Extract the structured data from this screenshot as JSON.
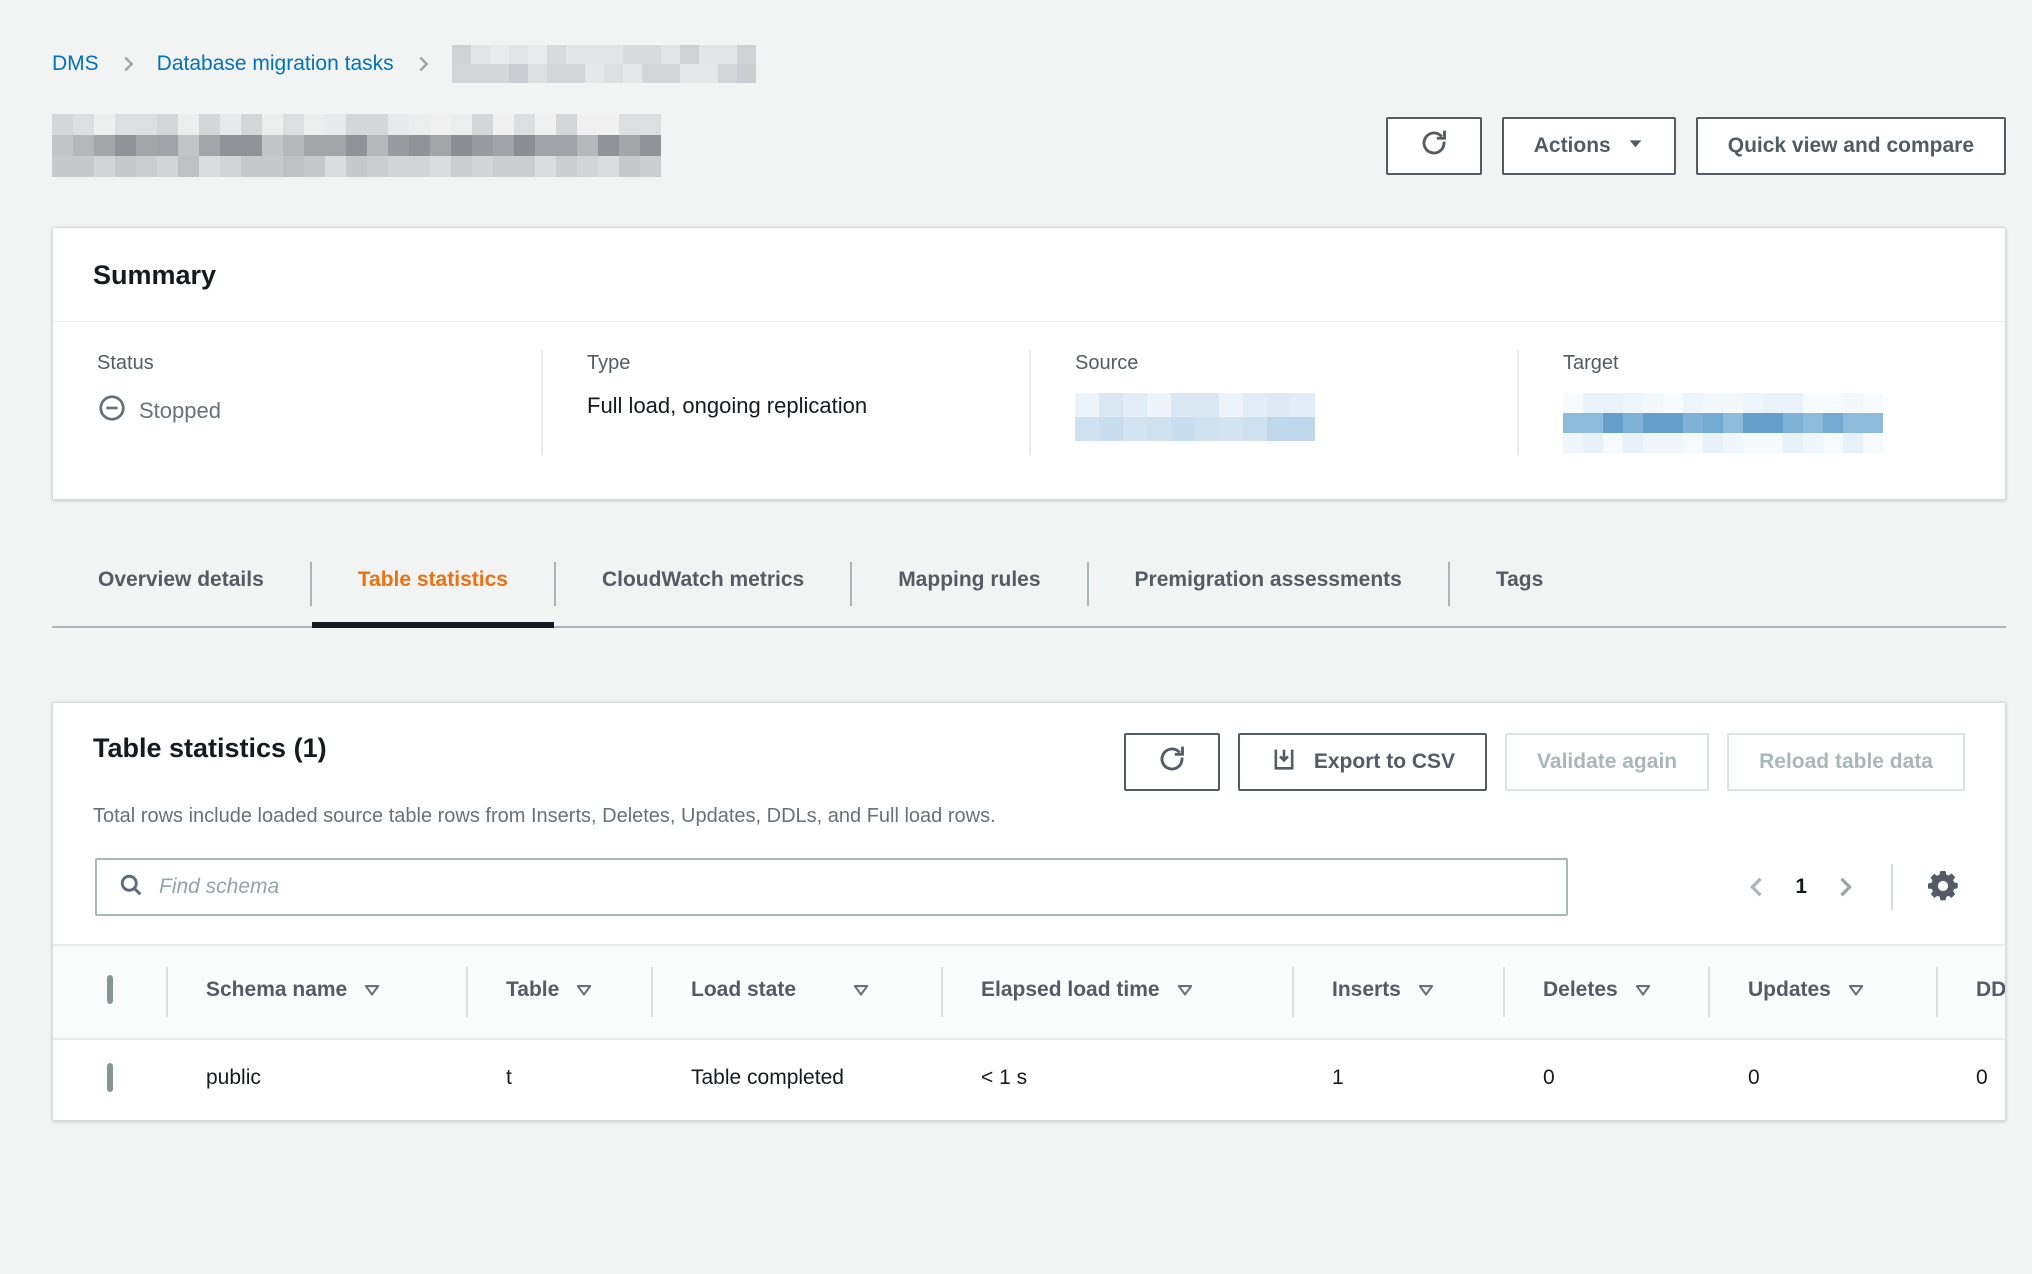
{
  "breadcrumb": {
    "items": [
      {
        "label": "DMS"
      },
      {
        "label": "Database migration tasks"
      }
    ]
  },
  "toolbar": {
    "actions_label": "Actions",
    "quick_view_label": "Quick view and compare"
  },
  "summary": {
    "title": "Summary",
    "status_label": "Status",
    "status_value": "Stopped",
    "type_label": "Type",
    "type_value": "Full load, ongoing replication",
    "source_label": "Source",
    "target_label": "Target"
  },
  "tabs": [
    {
      "label": "Overview details"
    },
    {
      "label": "Table statistics"
    },
    {
      "label": "CloudWatch metrics"
    },
    {
      "label": "Mapping rules"
    },
    {
      "label": "Premigration assessments"
    },
    {
      "label": "Tags"
    }
  ],
  "table_card": {
    "title": "Table statistics (1)",
    "description": "Total rows include loaded source table rows from Inserts, Deletes, Updates, DDLs, and Full load rows.",
    "export_label": "Export to CSV",
    "validate_label": "Validate again",
    "reload_label": "Reload table data",
    "search_placeholder": "Find schema",
    "pagination": {
      "page": "1"
    },
    "columns": [
      {
        "label": "Schema name"
      },
      {
        "label": "Table"
      },
      {
        "label": "Load state"
      },
      {
        "label": "Elapsed load time"
      },
      {
        "label": "Inserts"
      },
      {
        "label": "Deletes"
      },
      {
        "label": "Updates"
      },
      {
        "label": "DDLs"
      }
    ],
    "rows": [
      {
        "schema": "public",
        "table": "t",
        "load_state": "Table completed",
        "elapsed": "< 1 s",
        "inserts": "1",
        "deletes": "0",
        "updates": "0",
        "ddls": "0"
      }
    ]
  },
  "colors": {
    "accent_orange": "#ec7211",
    "link_blue": "#0073bb",
    "text_dark": "#16191f",
    "text_gray": "#545b64",
    "status_gray": "#687078",
    "disabled_gray": "#aab7b8",
    "border_light": "#eaeded",
    "border_mid": "#d5dbdb",
    "page_bg": "#f2f3f3",
    "active_tab_underline": "#16191f"
  },
  "redactions": {
    "breadcrumb_current": {
      "cols": 16,
      "rows": 2,
      "cell": 19,
      "seed": 5,
      "palettes": [
        [
          "#d8dbdd",
          "#e2e4e6",
          "#cfd3d6",
          "#e8eaeb"
        ],
        [
          "#d3d6d9",
          "#dde0e1",
          "#c9cdd1",
          "#e5e7e8"
        ]
      ]
    },
    "page_title": {
      "cols": 29,
      "rows": 3,
      "cell": 21,
      "seed": 11,
      "palettes": [
        [
          "#e8e9ea",
          "#dcdee0",
          "#f0f0f1",
          "#d4d6d8",
          "#eceeee"
        ],
        [
          "#8f9296",
          "#a3a6a9",
          "#989ba0",
          "#b5b7ba",
          "#8a8d92",
          "#c2c4c6",
          "#9fa2a6"
        ],
        [
          "#c6c8ca",
          "#d2d4d6",
          "#bec1c3",
          "#dbdcde",
          "#cbcdcf"
        ]
      ]
    },
    "source_value": {
      "cols": 10,
      "rows": 2,
      "cell": 24,
      "seed": 9,
      "palettes": [
        [
          "#e2eef7",
          "#d8e7f2",
          "#ecf3f9",
          "#dceaf4"
        ],
        [
          "#c8dded",
          "#d4e3f0",
          "#bed7ea",
          "#cfe0ee"
        ]
      ]
    },
    "target_value": {
      "cols": 16,
      "rows": 3,
      "cell": 20,
      "seed": 13,
      "palettes": [
        [
          "#f3f8fb",
          "#e9f2f8",
          "#f8fbfd",
          "#eef5fa"
        ],
        [
          "#74abd2",
          "#8cbbdb",
          "#639fc9",
          "#97c3df",
          "#7fb2d6"
        ],
        [
          "#f0f6fa",
          "#f7fafc",
          "#e8f1f8"
        ]
      ]
    }
  }
}
